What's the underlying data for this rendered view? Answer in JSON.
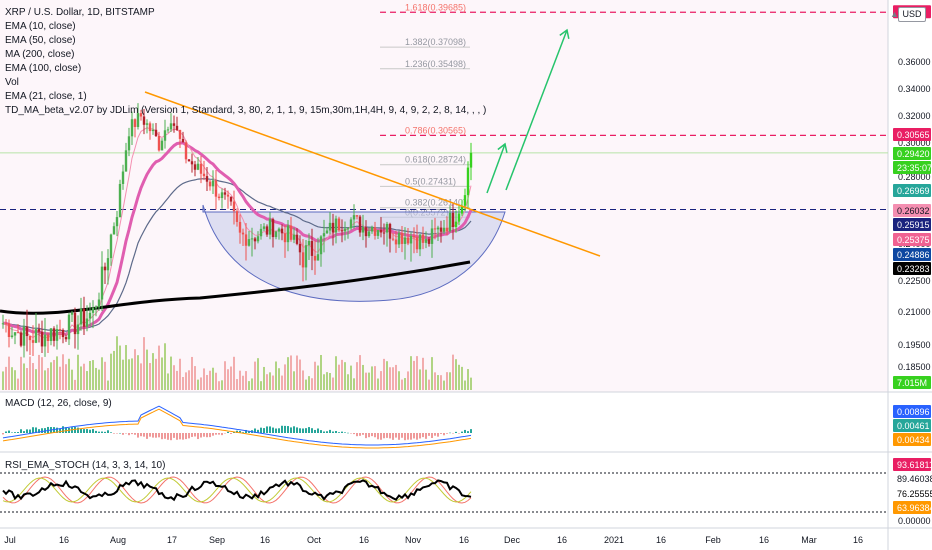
{
  "legend": {
    "title": "XRP / U.S. Dollar, 1D, BITSTAMP",
    "lines": [
      "EMA (10, close)",
      "EMA (50, close)",
      "MA (200, close)",
      "EMA (100, close)",
      "Vol",
      "EMA (21, close, 1)",
      "TD_MA_beta_v2.07 by JDLim (Version 1, Standard, 3, 80, 2, 1, 1, 9, 15m,30m,1H,4H, 9, 4, 9, 2, 2, 8, 14, , , )"
    ]
  },
  "currency_button": "USD",
  "macd_label": "MACD (12, 26, close, 9)",
  "rsi_label": "RSI_EMA_STOCH (14, 3, 3, 14, 10)",
  "colors": {
    "up": "#26a69a",
    "up_bright": "#37d11f",
    "down": "#ef5350",
    "down_dark": "#b2202a",
    "orange": "#ff9800",
    "fib": "#f4736b",
    "magenta": "#e91e63",
    "black": "#000000",
    "pink_ema": "#e05eb0",
    "cup_fill": "#c5cae9",
    "green_arrow": "#26c46c"
  },
  "chart_data": [
    {
      "type": "candlestick",
      "title": "XRP / U.S. Dollar, 1D, BITSTAMP",
      "x_axis": {
        "labels": [
          "Jul",
          "16",
          "Aug",
          "17",
          "Sep",
          "16",
          "Oct",
          "16",
          "Nov",
          "16",
          "Dec",
          "16",
          "2021",
          "16",
          "Feb",
          "16",
          "Mar",
          "16"
        ]
      },
      "y_axis": {
        "ticks": [
          "0.36000",
          "0.34000",
          "0.32000",
          "0.30000",
          "0.28000",
          "0.26000",
          "0.24000",
          "0.22500",
          "0.21000",
          "0.19500",
          "0.18500"
        ]
      },
      "fib_levels": [
        {
          "label": "1.618(0.39685)",
          "value": 0.39685
        },
        {
          "label": "1.382(0.37098)",
          "value": 0.37098
        },
        {
          "label": "1.236(0.35498)",
          "value": 0.35498
        },
        {
          "label": "0.786(0.30565)",
          "value": 0.30565
        },
        {
          "label": "0.618(0.28724)",
          "value": 0.28724
        },
        {
          "label": "0.5(0.27431)",
          "value": 0.27431
        },
        {
          "label": "0.382(0.26140)",
          "value": 0.2614
        },
        {
          "label": "0(0.25572)",
          "value": 0.25572
        }
      ],
      "price_labels": [
        {
          "text": "0.30565",
          "bg": "#e91e63",
          "fg": "#ffffff"
        },
        {
          "text": "0.29420",
          "bg": "#37d11f",
          "fg": "#ffffff"
        },
        {
          "text": "23:35:07",
          "bg": "#37d11f",
          "fg": "#ffffff"
        },
        {
          "text": "0.26969",
          "bg": "#26a69a",
          "fg": "#ffffff"
        },
        {
          "text": "0.26032",
          "bg": "#f48fb1",
          "fg": "#131722"
        },
        {
          "text": "0.25915",
          "bg": "#1a237e",
          "fg": "#ffffff"
        },
        {
          "text": "0.25375",
          "bg": "#f06292",
          "fg": "#ffffff"
        },
        {
          "text": "0.24886",
          "bg": "#0d47a1",
          "fg": "#ffffff"
        },
        {
          "text": "0.23283",
          "bg": "#000000",
          "fg": "#ffffff"
        },
        {
          "text": "7.015M",
          "bg": "#37d11f",
          "fg": "#ffffff"
        }
      ],
      "last_price": 0.2942,
      "volume_last": "7.015M"
    },
    {
      "type": "line",
      "name": "MACD (12, 26, close, 9)",
      "price_labels": [
        {
          "text": "0.00896",
          "bg": "#2962ff",
          "fg": "#ffffff"
        },
        {
          "text": "0.00461",
          "bg": "#26a69a",
          "fg": "#ffffff"
        },
        {
          "text": "0.00434",
          "bg": "#ff9800",
          "fg": "#ffffff"
        }
      ]
    },
    {
      "type": "line",
      "name": "RSI_EMA_STOCH (14, 3, 3, 14, 10)",
      "y_axis": {
        "ticks": [
          "0.00000"
        ]
      },
      "price_labels": [
        {
          "text": "93.61811",
          "bg": "#e91e63",
          "fg": "#ffffff"
        },
        {
          "text": "89.46038",
          "bg": "#ffffff",
          "fg": "#131722"
        },
        {
          "text": "76.25555",
          "bg": "#ffffff",
          "fg": "#000000"
        },
        {
          "text": "63.96384",
          "bg": "#ff9800",
          "fg": "#ffffff"
        }
      ]
    }
  ]
}
